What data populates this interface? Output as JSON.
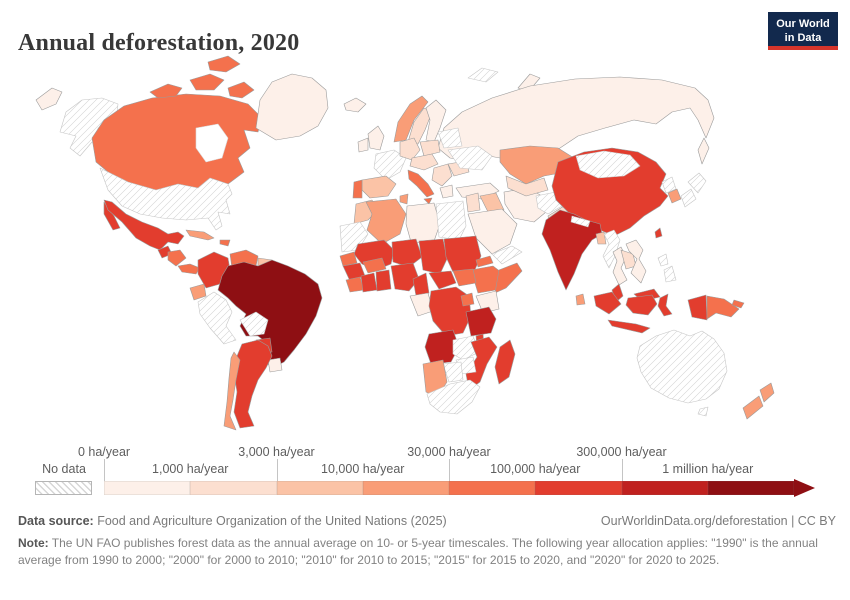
{
  "header": {
    "title": "Annual deforestation, 2020",
    "logo_line1": "Our World",
    "logo_line2": "in Data",
    "logo_bg": "#12294d",
    "logo_accent": "#d6352b"
  },
  "legend": {
    "no_data_label": "No data",
    "top_labels": [
      "0 ha/year",
      "3,000 ha/year",
      "30,000 ha/year",
      "300,000 ha/year"
    ],
    "bottom_labels": [
      "1,000 ha/year",
      "10,000 ha/year",
      "100,000 ha/year",
      "1 million ha/year"
    ],
    "colors": [
      "#fdf0e9",
      "#fcdfd0",
      "#fbc3a6",
      "#f99d77",
      "#f4714d",
      "#e23d2e",
      "#c0211f",
      "#8e0f13"
    ]
  },
  "footer": {
    "data_source_label": "Data source:",
    "data_source": " Food and Agriculture Organization of the United Nations (2025)",
    "link": "OurWorldinData.org/deforestation | CC BY",
    "note_label": "Note:",
    "note": " The UN FAO publishes forest data as the annual average on 10- or 5-year timescales. The following year allocation applies: \"1990\" is the annual average from 1990 to 2000; \"2000\" for 2000 to 2010; \"2010\" for 2010 to 2015; \"2015\" for 2015 to 2020, and \"2020\" for 2020 to 2025."
  },
  "map": {
    "palette": [
      "#fdf0e9",
      "#fcdfd0",
      "#fbc3a6",
      "#f99d77",
      "#f4714d",
      "#e23d2e",
      "#c0211f",
      "#8e0f13"
    ],
    "country_stroke": "#9b9b9b",
    "no_data_stroke": "#c6c6c6",
    "regions": {
      "chukotka": 0,
      "alaska": "no-data",
      "canada": 4,
      "canada-islands": 4,
      "greenland": 0,
      "usa": "no-data",
      "mexico": 5,
      "baja": 5,
      "guatemala": 5,
      "honduras": 4,
      "panama": 4,
      "cuba": 3,
      "hispaniola": 4,
      "colombia": 5,
      "venezuela": 4,
      "guianas": 2,
      "ecuador": 3,
      "peru": "no-data",
      "brazil": 7,
      "bolivia": "no-data",
      "paraguay": 5,
      "uruguay": 0,
      "argentina": 5,
      "chile": 3,
      "iceland": 0,
      "norway": 3,
      "sweden": 1,
      "finland": 0,
      "uk": 0,
      "ireland": 0,
      "france": "no-data",
      "spain": 2,
      "portugal": 4,
      "germany": 1,
      "poland": 1,
      "central-europe": 1,
      "italy": 4,
      "sicily": 4,
      "balkans": 1,
      "greece": 0,
      "romania": 1,
      "ukraine": "no-data",
      "belarus-baltics": "no-data",
      "turkey": 0,
      "svalbard": "no-data",
      "novaya-zemlya": 0,
      "russia": 0,
      "sakhalin": 0,
      "levant": 1,
      "iraq": 2,
      "saudi": 0,
      "yemen-oman": "no-data",
      "iran": 0,
      "afghanistan": "no-data",
      "pakistan": 1,
      "kazakhstan": 3,
      "uzbek-turkmen": 1,
      "china": 5,
      "mongolia": "no-data",
      "india": 6,
      "nepal": "no-data",
      "bangladesh": 2,
      "myanmar": "no-data",
      "thailand": 0,
      "cambodia": 1,
      "vietnam": 0,
      "north-korea": "no-data",
      "south-korea": 3,
      "japan": "no-data",
      "sri-lanka": 3,
      "philippines": "no-data",
      "taiwan": 5,
      "malaysia-peninsula": 5,
      "malaysia-borneo": 5,
      "sumatra": 5,
      "java": 5,
      "kalimantan": 5,
      "sulawesi": 5,
      "west-papua": 5,
      "png": 4,
      "new-britain": 4,
      "australia": "no-data",
      "tasmania": "no-data",
      "nz-north": 3,
      "nz-south": 3,
      "morocco": 2,
      "western-sahara-mauritania": "no-data",
      "algeria": 3,
      "tunisia": 3,
      "libya": 0,
      "egypt": "no-data",
      "mali": 5,
      "niger": 5,
      "chad": 5,
      "sudan": 5,
      "eritrea": 4,
      "ethiopia": 4,
      "somalia": 4,
      "senegal": 4,
      "guinea": 5,
      "sierra-leone-liberia": 4,
      "cote-divoire": 5,
      "ghana": 5,
      "burkina-faso": 4,
      "nigeria": 5,
      "cameroon": 5,
      "car": 5,
      "south-sudan": 4,
      "gabon-congo": 0,
      "drc": 5,
      "uganda": 4,
      "kenya": 0,
      "tanzania": 6,
      "angola": 6,
      "zambia": "no-data",
      "malawi": 5,
      "mozambique": 5,
      "zimbabwe": "no-data",
      "botswana": "no-data",
      "namibia": 3,
      "south-africa": "no-data",
      "madagascar": 5
    }
  },
  "chart_data": {
    "type": "choropleth",
    "title": "Annual deforestation, 2020",
    "unit": "ha/year",
    "legend_position": "bottom",
    "scale_bins": [
      "0–1,000",
      "1,000–3,000",
      "3,000–10,000",
      "10,000–30,000",
      "30,000–100,000",
      "100,000–300,000",
      "300,000–1 million",
      "1 million+"
    ],
    "bin_colors": [
      "#fdf0e9",
      "#fcdfd0",
      "#fbc3a6",
      "#f99d77",
      "#f4714d",
      "#e23d2e",
      "#c0211f",
      "#8e0f13"
    ],
    "no_data_style": "diagonal-hatch",
    "countries_by_bin": {
      "no_data": [
        "United States",
        "France",
        "Ukraine",
        "Belarus",
        "Egypt",
        "Western Sahara",
        "Mauritania",
        "Peru",
        "Bolivia",
        "Australia",
        "Mongolia",
        "Japan",
        "North Korea",
        "Philippines",
        "Myanmar",
        "Nepal",
        "Afghanistan",
        "South Africa",
        "Botswana",
        "Zimbabwe",
        "Zambia",
        "Yemen",
        "Oman",
        "Laos"
      ],
      "0-1000": [
        "Russia",
        "Greenland",
        "Finland",
        "United Kingdom",
        "Ireland",
        "Iceland",
        "Turkey",
        "Libya",
        "Saudi Arabia",
        "Iran",
        "Uruguay",
        "Thailand",
        "Vietnam",
        "Kenya",
        "Gabon",
        "Greece"
      ],
      "1000-3000": [
        "Sweden",
        "Germany",
        "Poland",
        "Romania",
        "Pakistan",
        "Uzbekistan",
        "Cambodia",
        "Syria"
      ],
      "3000-10000": [
        "Spain",
        "Morocco",
        "Iraq",
        "Bangladesh",
        "Guyana",
        "Suriname"
      ],
      "10000-30000": [
        "Kazakhstan",
        "Algeria",
        "Tunisia",
        "Norway",
        "Chile",
        "Namibia",
        "New Zealand",
        "South Korea",
        "Cuba",
        "Ecuador",
        "Sri Lanka"
      ],
      "30000-100000": [
        "Canada",
        "Portugal",
        "Italy",
        "Venezuela",
        "Papua New Guinea",
        "Ethiopia",
        "Somalia",
        "Senegal",
        "Burkina Faso",
        "Honduras",
        "Nicaragua",
        "Panama",
        "South Sudan",
        "Uganda",
        "Eritrea",
        "Liberia"
      ],
      "100000-300000": [
        "China",
        "Mexico",
        "Indonesia",
        "Argentina",
        "Colombia",
        "Democratic Republic of Congo",
        "Mozambique",
        "Madagascar",
        "Mali",
        "Niger",
        "Chad",
        "Sudan",
        "Nigeria",
        "Guinea",
        "Cote d'Ivoire",
        "Ghana",
        "Cameroon",
        "Central African Republic",
        "Malaysia",
        "Guatemala",
        "Paraguay",
        "Malawi"
      ],
      "300000-1million": [
        "India",
        "Tanzania",
        "Angola"
      ],
      "1million-plus": [
        "Brazil"
      ]
    }
  }
}
